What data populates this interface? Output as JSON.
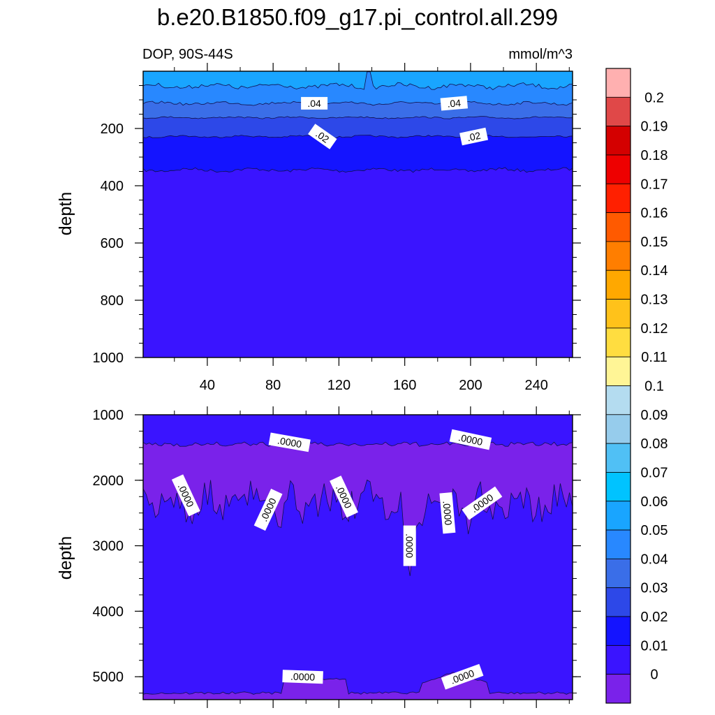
{
  "chart_data": {
    "type": "contour",
    "title": "b.e20.B1850.f09_g17.pi_control.all.299",
    "subtitle_left": "DOP, 90S-44S",
    "subtitle_right": "mmol/m^3",
    "ylabel": "depth",
    "xticks": [
      "40",
      "80",
      "120",
      "160",
      "200",
      "240"
    ],
    "xtick_values": [
      40,
      80,
      120,
      160,
      200,
      240
    ],
    "xlim": [
      1,
      262
    ],
    "panels": [
      {
        "name": "upper",
        "ylim": [
          0,
          1000
        ],
        "yticks": [
          "200",
          "400",
          "600",
          "800",
          "1000"
        ],
        "ytick_values": [
          200,
          400,
          600,
          800,
          1000
        ],
        "background_color": "#3a14ff",
        "bands": [
          {
            "level": "0.01-0.02",
            "color": "#1414ff",
            "depth_base": 345
          },
          {
            "level": "0.02-0.03",
            "color": "#2d48e8",
            "depth_base": 228
          },
          {
            "level": "0.03-0.04",
            "color": "#3a6ee8",
            "depth_base": 162
          },
          {
            "level": "0.04-0.05",
            "color": "#2888ff",
            "depth_base": 112
          },
          {
            "level": "0.05-0.06",
            "color": "#19a5ff",
            "depth_base": 52
          }
        ],
        "contour_labels": [
          {
            "text": ".04",
            "x": 105,
            "depth": 112,
            "rotate": 0
          },
          {
            "text": ".04",
            "x": 190,
            "depth": 112,
            "rotate": -5
          },
          {
            "text": ".02",
            "x": 110,
            "depth": 228,
            "rotate": 35
          },
          {
            "text": ".02",
            "x": 202,
            "depth": 228,
            "rotate": -12
          }
        ]
      },
      {
        "name": "lower",
        "ylim": [
          1000,
          5350
        ],
        "yticks": [
          "1000",
          "2000",
          "3000",
          "4000",
          "5000"
        ],
        "ytick_values": [
          1000,
          2000,
          3000,
          4000,
          5000
        ],
        "background_color": "#3a14ff",
        "zero_band_color": "#7a22ea",
        "zero_band_top_depth": 1450,
        "zero_band_bottom_depth": 2350,
        "bottom_band_top_depth": 5250,
        "contour_labels": [
          {
            "text": ".0000",
            "x": 90,
            "depth": 1420,
            "rotate": 10
          },
          {
            "text": ".0000",
            "x": 200,
            "depth": 1380,
            "rotate": 12
          },
          {
            "text": ".0000",
            "x": 27,
            "depth": 2230,
            "rotate": 65
          },
          {
            "text": ".0000",
            "x": 77,
            "depth": 2450,
            "rotate": -65
          },
          {
            "text": ".0000",
            "x": 123,
            "depth": 2250,
            "rotate": 65
          },
          {
            "text": ".0000",
            "x": 163,
            "depth": 3000,
            "rotate": 90
          },
          {
            "text": ".0000",
            "x": 186,
            "depth": 2500,
            "rotate": 85
          },
          {
            "text": ".0000",
            "x": 207,
            "depth": 2350,
            "rotate": -35
          },
          {
            "text": ".0000",
            "x": 98,
            "depth": 5000,
            "rotate": 2
          },
          {
            "text": ".0000",
            "x": 195,
            "depth": 5000,
            "rotate": -20
          }
        ]
      }
    ],
    "colorbar": {
      "labels": [
        "0.2",
        "0.19",
        "0.18",
        "0.17",
        "0.16",
        "0.15",
        "0.14",
        "0.13",
        "0.12",
        "0.11",
        "0.1",
        "0.09",
        "0.08",
        "0.07",
        "0.06",
        "0.05",
        "0.04",
        "0.03",
        "0.02",
        "0.01",
        "0"
      ],
      "colors": [
        "#ffb0b0",
        "#e04848",
        "#d40000",
        "#ee0000",
        "#ff2000",
        "#ff5a00",
        "#ff7e00",
        "#ffa800",
        "#ffc21a",
        "#ffdd40",
        "#fff596",
        "#b4dcf0",
        "#96ccec",
        "#50c0f5",
        "#00c3ff",
        "#19a5ff",
        "#2888ff",
        "#3a6ee8",
        "#2d48e8",
        "#1414ff",
        "#3a14ff",
        "#7a22ea"
      ]
    }
  }
}
